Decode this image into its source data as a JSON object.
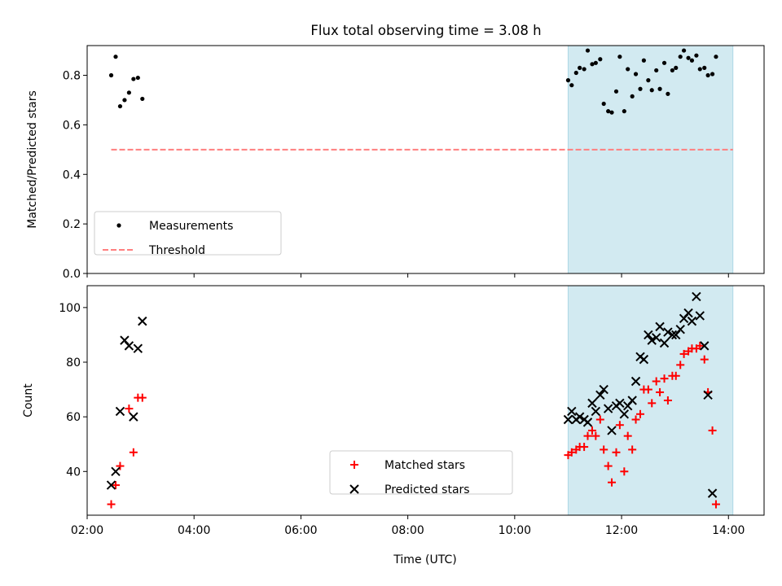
{
  "title": "Flux total observing time = 3.08 h",
  "xlabel": "Time (UTC)",
  "x_ticks": [
    "02:00",
    "04:00",
    "06:00",
    "08:00",
    "10:00",
    "12:00",
    "14:00"
  ],
  "colors": {
    "shade": "#add8e6",
    "threshold": "#ff7f7f",
    "matched": "#ff0000",
    "predicted": "#000000",
    "measurement": "#000000"
  },
  "chart_data": [
    {
      "type": "scatter",
      "ylabel": "Matched/Predicted stars",
      "xlim": [
        "02:00",
        "14:40"
      ],
      "ylim": [
        0,
        0.92
      ],
      "y_ticks": [
        "0.0",
        "0.2",
        "0.4",
        "0.6",
        "0.8"
      ],
      "grid": false,
      "legend_position": "lower-left",
      "shaded_region": {
        "x": [
          "11:00",
          "14:05"
        ]
      },
      "series": [
        {
          "name": "Measurements",
          "marker": "dot",
          "points": [
            [
              "02:27",
              0.8
            ],
            [
              "02:32",
              0.875
            ],
            [
              "02:37",
              0.675
            ],
            [
              "02:42",
              0.7
            ],
            [
              "02:47",
              0.73
            ],
            [
              "02:52",
              0.785
            ],
            [
              "02:57",
              0.79
            ],
            [
              "03:02",
              0.705
            ],
            [
              "11:00",
              0.78
            ],
            [
              "11:04",
              0.76
            ],
            [
              "11:09",
              0.81
            ],
            [
              "11:13",
              0.83
            ],
            [
              "11:18",
              0.825
            ],
            [
              "11:22",
              0.9
            ],
            [
              "11:27",
              0.845
            ],
            [
              "11:31",
              0.85
            ],
            [
              "11:36",
              0.865
            ],
            [
              "11:40",
              0.685
            ],
            [
              "11:45",
              0.655
            ],
            [
              "11:49",
              0.65
            ],
            [
              "11:54",
              0.735
            ],
            [
              "11:58",
              0.875
            ],
            [
              "12:03",
              0.655
            ],
            [
              "12:07",
              0.825
            ],
            [
              "12:12",
              0.715
            ],
            [
              "12:16",
              0.805
            ],
            [
              "12:21",
              0.745
            ],
            [
              "12:25",
              0.86
            ],
            [
              "12:30",
              0.78
            ],
            [
              "12:34",
              0.74
            ],
            [
              "12:39",
              0.82
            ],
            [
              "12:43",
              0.745
            ],
            [
              "12:48",
              0.85
            ],
            [
              "12:52",
              0.725
            ],
            [
              "12:57",
              0.82
            ],
            [
              "13:01",
              0.83
            ],
            [
              "13:06",
              0.875
            ],
            [
              "13:10",
              0.9
            ],
            [
              "13:15",
              0.87
            ],
            [
              "13:19",
              0.86
            ],
            [
              "13:24",
              0.88
            ],
            [
              "13:28",
              0.825
            ],
            [
              "13:33",
              0.83
            ],
            [
              "13:37",
              0.8
            ],
            [
              "13:42",
              0.805
            ],
            [
              "13:46",
              0.875
            ]
          ]
        },
        {
          "name": "Threshold",
          "style": "dashed",
          "points": [
            [
              "02:27",
              0.5
            ],
            [
              "14:05",
              0.5
            ]
          ]
        }
      ]
    },
    {
      "type": "scatter",
      "ylabel": "Count",
      "xlim": [
        "02:00",
        "14:40"
      ],
      "ylim": [
        24,
        108
      ],
      "y_ticks": [
        "40",
        "60",
        "80",
        "100"
      ],
      "grid": false,
      "legend_position": "lower-center",
      "shaded_region": {
        "x": [
          "11:00",
          "14:05"
        ]
      },
      "series": [
        {
          "name": "Matched stars",
          "marker": "plus",
          "points": [
            [
              "02:27",
              28
            ],
            [
              "02:32",
              35
            ],
            [
              "02:37",
              42
            ],
            [
              "02:47",
              63
            ],
            [
              "02:52",
              47
            ],
            [
              "02:57",
              67
            ],
            [
              "03:02",
              67
            ],
            [
              "11:00",
              46
            ],
            [
              "11:04",
              47
            ],
            [
              "11:09",
              48
            ],
            [
              "11:13",
              49
            ],
            [
              "11:18",
              49
            ],
            [
              "11:22",
              53
            ],
            [
              "11:27",
              55
            ],
            [
              "11:31",
              53
            ],
            [
              "11:36",
              59
            ],
            [
              "11:40",
              48
            ],
            [
              "11:45",
              42
            ],
            [
              "11:49",
              36
            ],
            [
              "11:54",
              47
            ],
            [
              "11:58",
              57
            ],
            [
              "12:03",
              40
            ],
            [
              "12:07",
              53
            ],
            [
              "12:12",
              48
            ],
            [
              "12:16",
              59
            ],
            [
              "12:21",
              61
            ],
            [
              "12:25",
              70
            ],
            [
              "12:30",
              70
            ],
            [
              "12:34",
              65
            ],
            [
              "12:39",
              73
            ],
            [
              "12:43",
              69
            ],
            [
              "12:48",
              74
            ],
            [
              "12:52",
              66
            ],
            [
              "12:57",
              75
            ],
            [
              "13:01",
              75
            ],
            [
              "13:06",
              79
            ],
            [
              "13:10",
              83
            ],
            [
              "13:15",
              84
            ],
            [
              "13:19",
              85
            ],
            [
              "13:24",
              85
            ],
            [
              "13:28",
              86
            ],
            [
              "13:33",
              81
            ],
            [
              "13:37",
              69
            ],
            [
              "13:42",
              55
            ],
            [
              "13:46",
              28
            ]
          ]
        },
        {
          "name": "Predicted stars",
          "marker": "x",
          "points": [
            [
              "02:27",
              35
            ],
            [
              "02:32",
              40
            ],
            [
              "02:37",
              62
            ],
            [
              "02:42",
              88
            ],
            [
              "02:47",
              86
            ],
            [
              "02:52",
              60
            ],
            [
              "02:57",
              85
            ],
            [
              "03:02",
              95
            ],
            [
              "11:00",
              59
            ],
            [
              "11:04",
              62
            ],
            [
              "11:09",
              59
            ],
            [
              "11:13",
              60
            ],
            [
              "11:18",
              59
            ],
            [
              "11:22",
              58
            ],
            [
              "11:27",
              65
            ],
            [
              "11:31",
              62
            ],
            [
              "11:36",
              68
            ],
            [
              "11:40",
              70
            ],
            [
              "11:45",
              63
            ],
            [
              "11:49",
              55
            ],
            [
              "11:54",
              64
            ],
            [
              "11:58",
              65
            ],
            [
              "12:03",
              61
            ],
            [
              "12:07",
              64
            ],
            [
              "12:12",
              66
            ],
            [
              "12:16",
              73
            ],
            [
              "12:21",
              82
            ],
            [
              "12:25",
              81
            ],
            [
              "12:30",
              90
            ],
            [
              "12:34",
              88
            ],
            [
              "12:39",
              89
            ],
            [
              "12:43",
              93
            ],
            [
              "12:48",
              87
            ],
            [
              "12:52",
              91
            ],
            [
              "12:57",
              90
            ],
            [
              "13:01",
              90
            ],
            [
              "13:06",
              92
            ],
            [
              "13:10",
              96
            ],
            [
              "13:15",
              98
            ],
            [
              "13:19",
              95
            ],
            [
              "13:24",
              104
            ],
            [
              "13:28",
              97
            ],
            [
              "13:33",
              86
            ],
            [
              "13:37",
              68
            ],
            [
              "13:42",
              32
            ]
          ]
        }
      ]
    }
  ]
}
